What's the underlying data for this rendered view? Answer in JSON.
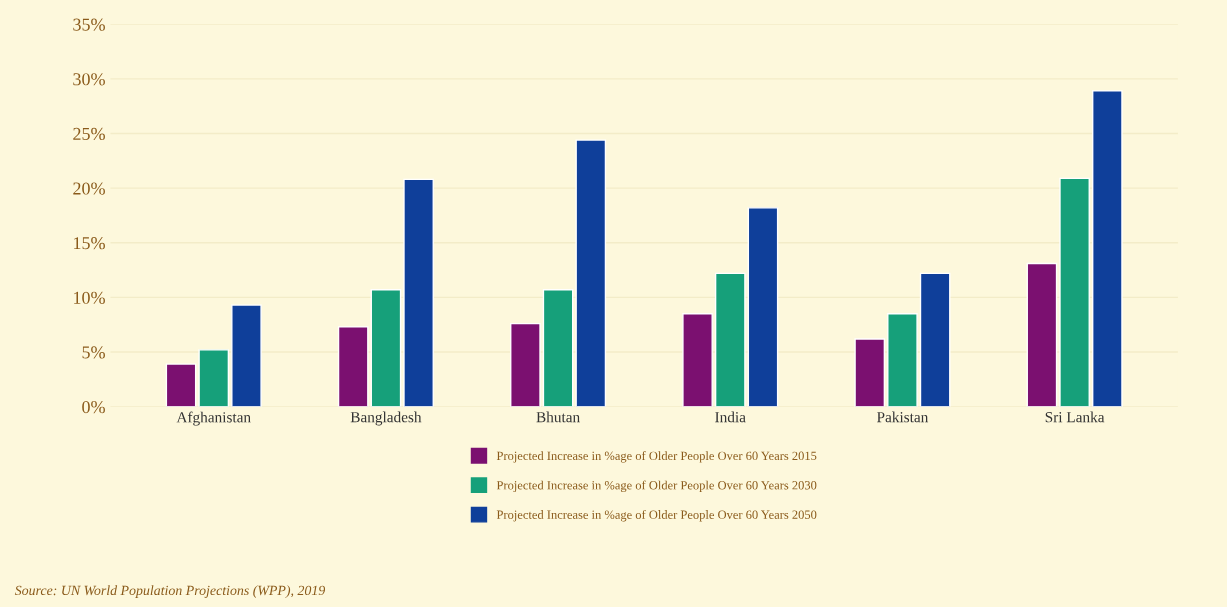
{
  "chart_data": {
    "type": "bar",
    "categories": [
      "Afghanistan",
      "Bangladesh",
      "Bhutan",
      "India",
      "Pakistan",
      "Sri Lanka"
    ],
    "series": [
      {
        "name": "Projected Increase in %age of Older People Over 60 Years 2015",
        "color": "#7b1070",
        "values": [
          3.9,
          7.3,
          7.6,
          8.5,
          6.2,
          13.1
        ]
      },
      {
        "name": "Projected Increase in %age of Older People Over 60 Years 2030",
        "color": "#16a07a",
        "values": [
          5.2,
          10.7,
          10.7,
          12.2,
          8.5,
          20.9
        ]
      },
      {
        "name": "Projected Increase in %age of Older People Over 60 Years 2050",
        "color": "#0f3f9a",
        "values": [
          9.3,
          20.8,
          24.4,
          18.2,
          12.2,
          28.9
        ]
      }
    ],
    "ylim": [
      0,
      35
    ],
    "yticks": [
      {
        "value": 0,
        "label": "0%"
      },
      {
        "value": 5,
        "label": "5%"
      },
      {
        "value": 10,
        "label": "10%"
      },
      {
        "value": 15,
        "label": "15%"
      },
      {
        "value": 20,
        "label": "20%"
      },
      {
        "value": 25,
        "label": "25%"
      },
      {
        "value": 30,
        "label": "30%"
      },
      {
        "value": 35,
        "label": "35%"
      }
    ],
    "grid": "y",
    "legend": "bottom",
    "annotations": [
      "Source: UN World Population Projections (WPP), 2019"
    ]
  }
}
